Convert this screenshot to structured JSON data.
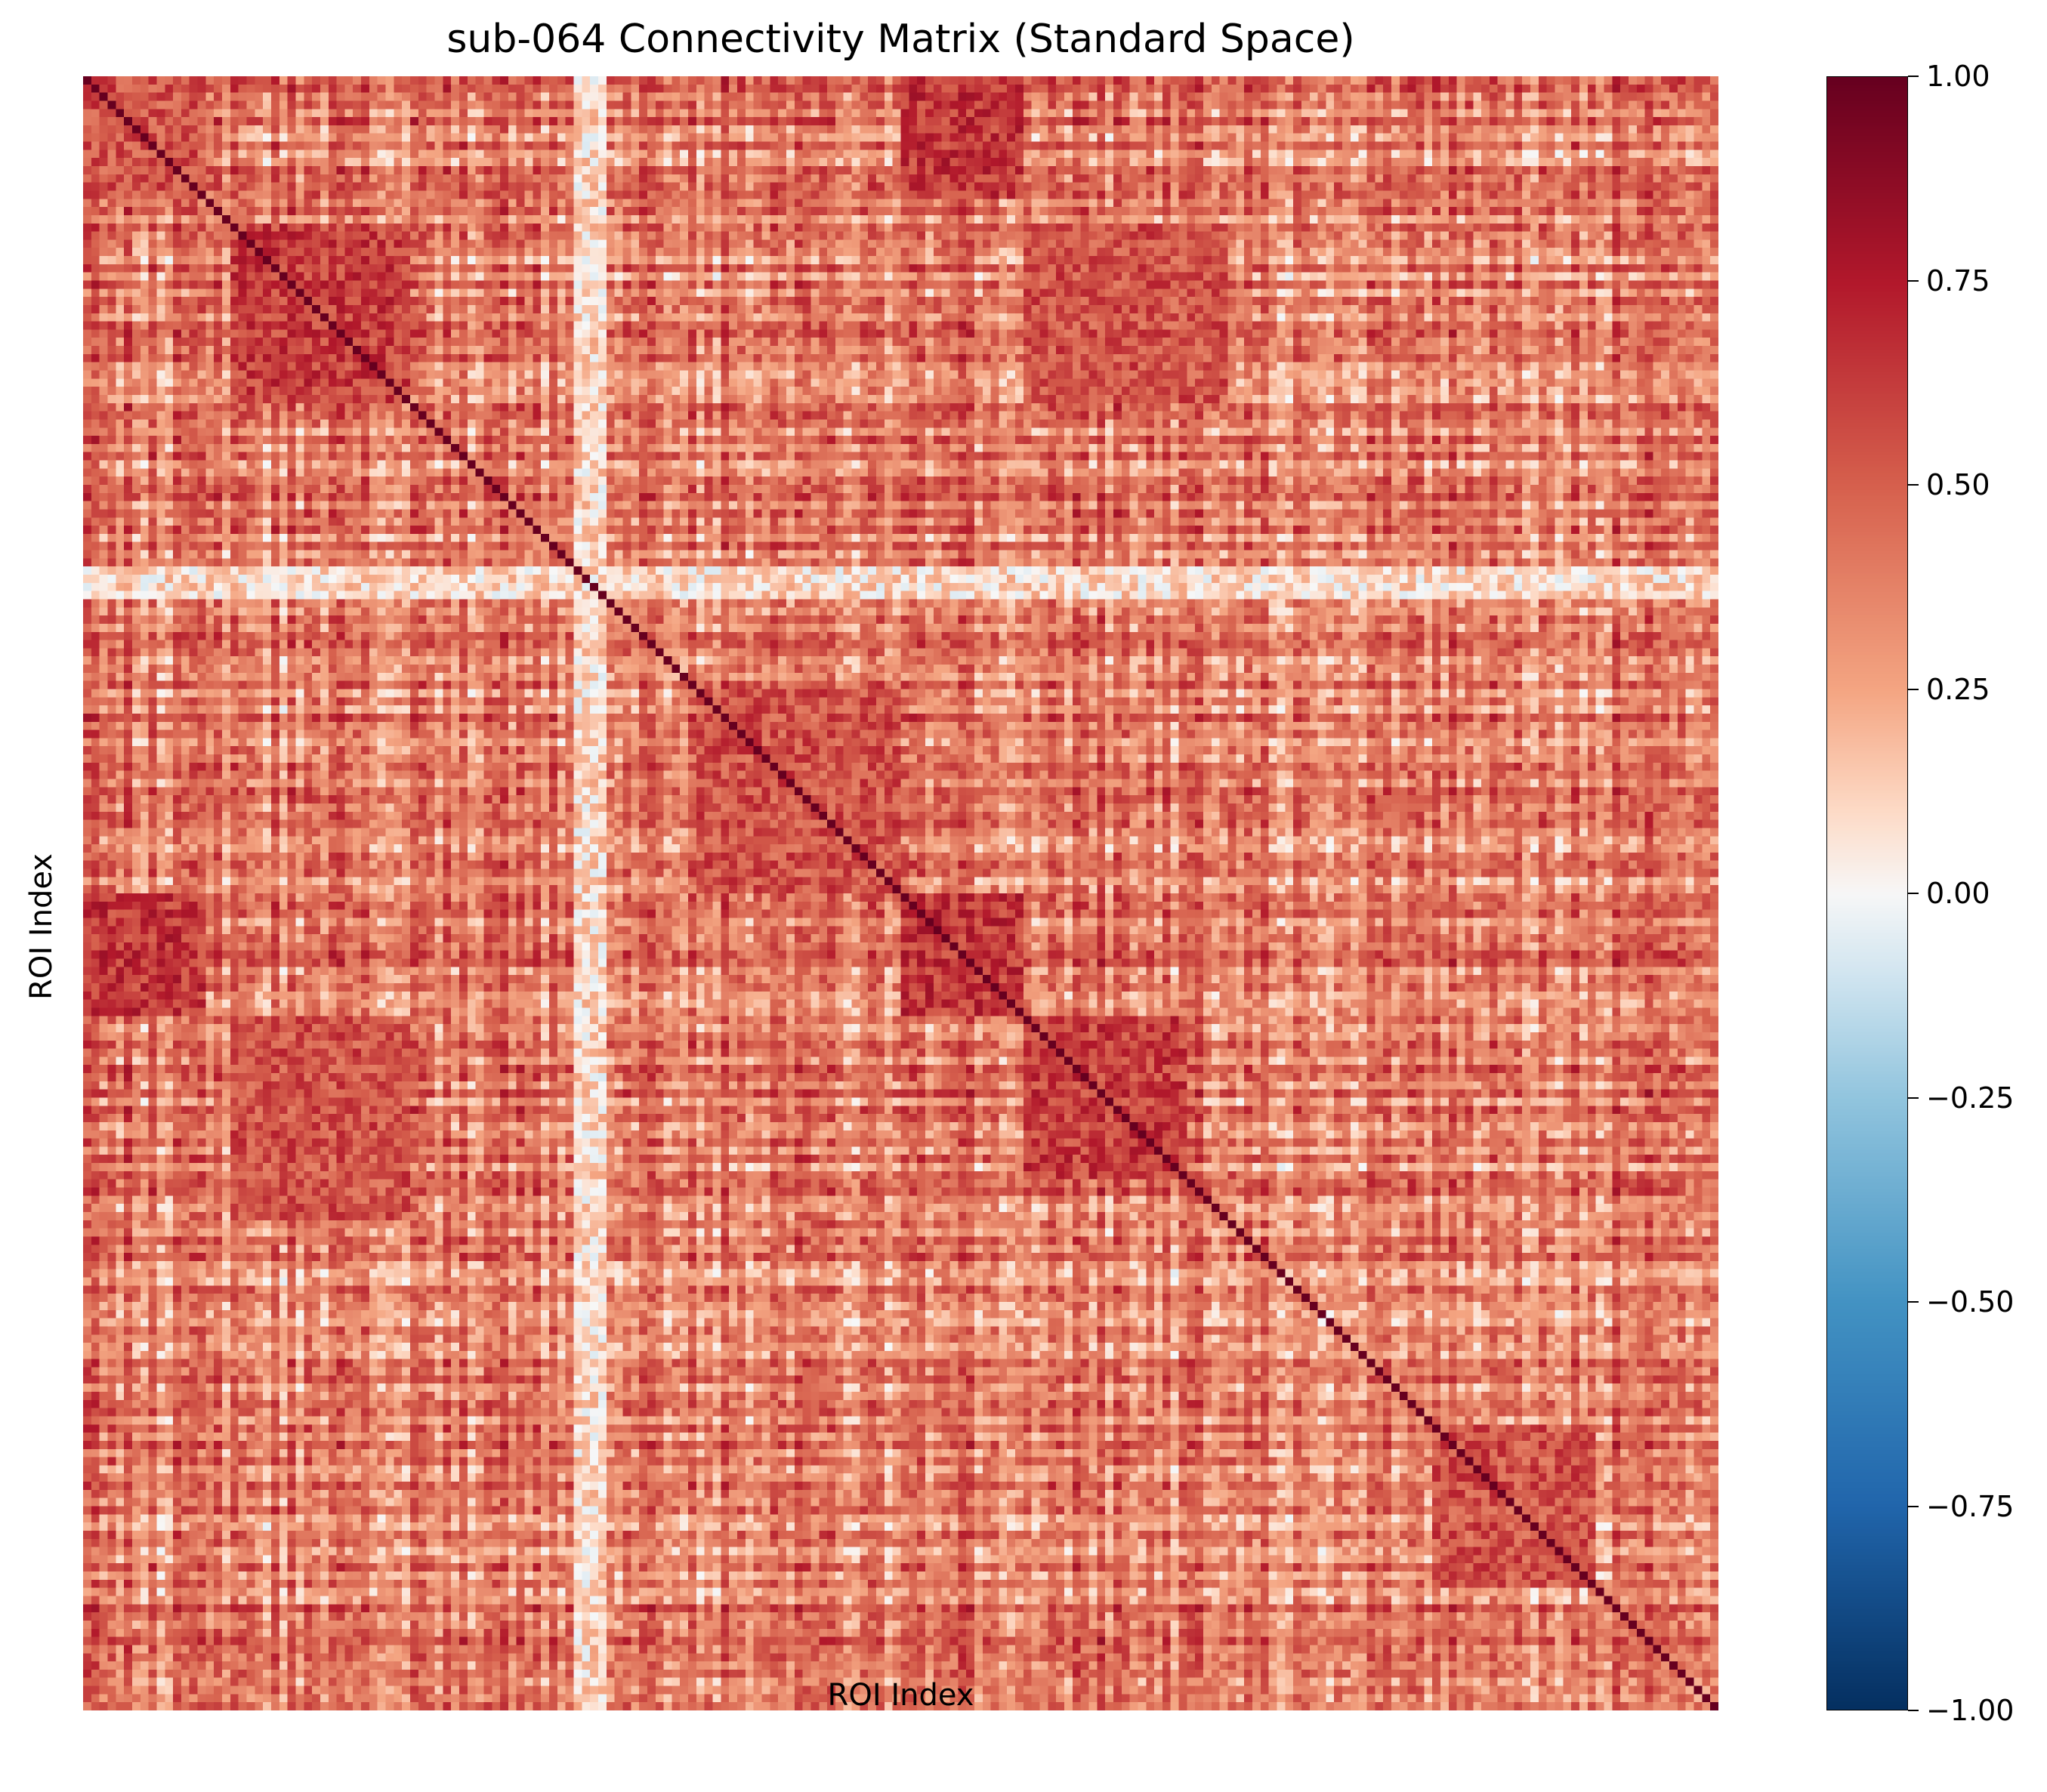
{
  "chart_data": {
    "type": "heatmap",
    "title": "sub-064 Connectivity Matrix (Standard Space)",
    "xlabel": "ROI Index",
    "ylabel": "ROI Index",
    "n_rois": 200,
    "x_ticks": [],
    "y_ticks": [],
    "grid": false,
    "colormap": "RdBu_r",
    "color_range": [
      -1.0,
      1.0
    ],
    "colorbar": {
      "ticks": [
        1.0,
        0.75,
        0.5,
        0.25,
        0.0,
        -0.25,
        -0.5,
        -0.75,
        -1.0
      ],
      "tick_labels": [
        "1.00",
        "0.75",
        "0.50",
        "0.25",
        "0.00",
        "−0.25",
        "−0.50",
        "−0.75",
        "−1.00"
      ]
    },
    "diagonal_value": 1.0,
    "typical_off_diagonal_range": [
      -0.15,
      0.95
    ],
    "mirrored_blocks": [
      {
        "rows": [
          0,
          15
        ],
        "cols": [
          0,
          15
        ],
        "mean": 0.55
      },
      {
        "rows": [
          0,
          15
        ],
        "cols": [
          100,
          115
        ],
        "mean": 0.65
      },
      {
        "rows": [
          100,
          115
        ],
        "cols": [
          100,
          115
        ],
        "mean": 0.65
      },
      {
        "rows": [
          18,
          40
        ],
        "cols": [
          18,
          40
        ],
        "mean": 0.62
      },
      {
        "rows": [
          115,
          135
        ],
        "cols": [
          115,
          135
        ],
        "mean": 0.62
      },
      {
        "rows": [
          18,
          40
        ],
        "cols": [
          115,
          140
        ],
        "mean": 0.55
      },
      {
        "rows": [
          75,
          100
        ],
        "cols": [
          75,
          100
        ],
        "mean": 0.55
      },
      {
        "rows": [
          165,
          185
        ],
        "cols": [
          165,
          185
        ],
        "mean": 0.55
      },
      {
        "rows": [
          60,
          64
        ],
        "cols": [
          0,
          200
        ],
        "mean": 0.1
      },
      {
        "rows": [
          55,
          60
        ],
        "cols": [
          55,
          60
        ],
        "mean": 0.45
      }
    ],
    "colors": {
      "neg_strong": "#053061",
      "neutral": "#f7f7f7",
      "pos_strong": "#67001f"
    }
  }
}
